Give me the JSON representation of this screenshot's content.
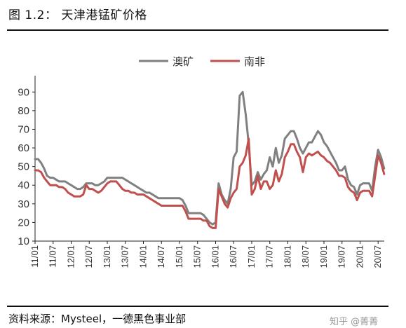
{
  "figure_title": "图 1.2：  天津港锰矿价格",
  "source": "资料来源：Mysteel，一德黑色事业部",
  "watermark": "知乎 @菁菁",
  "chart_data": {
    "type": "line",
    "title": "",
    "xlabel": "",
    "ylabel": "",
    "ylim": [
      10,
      95
    ],
    "yticks": [
      10,
      20,
      30,
      40,
      50,
      60,
      70,
      80,
      90
    ],
    "xlim": [
      2011.0,
      2020.67
    ],
    "xticks": [
      "11/01",
      "11/07",
      "12/01",
      "12/07",
      "13/01",
      "13/07",
      "14/01",
      "14/07",
      "15/01",
      "15/07",
      "16/01",
      "16/07",
      "17/01",
      "17/07",
      "18/01",
      "18/07",
      "19/01",
      "19/07",
      "20/01",
      "20/07"
    ],
    "legend_position": "top",
    "grid": false,
    "series": [
      {
        "name": "澳矿",
        "color": "#808080",
        "points": [
          [
            "2011-01",
            54
          ],
          [
            "2011-02",
            54
          ],
          [
            "2011-03",
            52
          ],
          [
            "2011-04",
            49
          ],
          [
            "2011-05",
            45
          ],
          [
            "2011-06",
            44
          ],
          [
            "2011-07",
            44
          ],
          [
            "2011-08",
            43
          ],
          [
            "2011-09",
            42
          ],
          [
            "2011-10",
            42
          ],
          [
            "2011-11",
            42
          ],
          [
            "2011-12",
            41
          ],
          [
            "2012-01",
            40
          ],
          [
            "2012-02",
            39
          ],
          [
            "2012-03",
            38
          ],
          [
            "2012-04",
            38
          ],
          [
            "2012-05",
            39
          ],
          [
            "2012-06",
            41
          ],
          [
            "2012-07",
            41
          ],
          [
            "2012-08",
            41
          ],
          [
            "2012-09",
            40
          ],
          [
            "2012-10",
            40
          ],
          [
            "2012-11",
            41
          ],
          [
            "2012-12",
            42
          ],
          [
            "2013-01",
            44
          ],
          [
            "2013-02",
            44
          ],
          [
            "2013-03",
            44
          ],
          [
            "2013-04",
            44
          ],
          [
            "2013-05",
            44
          ],
          [
            "2013-06",
            44
          ],
          [
            "2013-07",
            43
          ],
          [
            "2013-08",
            42
          ],
          [
            "2013-09",
            41
          ],
          [
            "2013-10",
            40
          ],
          [
            "2013-11",
            39
          ],
          [
            "2013-12",
            38
          ],
          [
            "2014-01",
            37
          ],
          [
            "2014-02",
            36
          ],
          [
            "2014-03",
            36
          ],
          [
            "2014-04",
            35
          ],
          [
            "2014-05",
            34
          ],
          [
            "2014-06",
            33
          ],
          [
            "2014-07",
            33
          ],
          [
            "2014-08",
            33
          ],
          [
            "2014-09",
            33
          ],
          [
            "2014-10",
            33
          ],
          [
            "2014-11",
            33
          ],
          [
            "2014-12",
            33
          ],
          [
            "2015-01",
            33
          ],
          [
            "2015-02",
            32
          ],
          [
            "2015-03",
            29
          ],
          [
            "2015-04",
            25
          ],
          [
            "2015-05",
            25
          ],
          [
            "2015-06",
            25
          ],
          [
            "2015-07",
            25
          ],
          [
            "2015-08",
            25
          ],
          [
            "2015-09",
            24
          ],
          [
            "2015-10",
            22
          ],
          [
            "2015-11",
            20
          ],
          [
            "2015-12",
            19
          ],
          [
            "2016-01",
            20
          ],
          [
            "2016-02",
            41
          ],
          [
            "2016-03",
            35
          ],
          [
            "2016-04",
            32
          ],
          [
            "2016-05",
            30
          ],
          [
            "2016-06",
            38
          ],
          [
            "2016-07",
            55
          ],
          [
            "2016-08",
            58
          ],
          [
            "2016-09",
            88
          ],
          [
            "2016-10",
            90
          ],
          [
            "2016-11",
            78
          ],
          [
            "2016-12",
            62
          ],
          [
            "2017-01",
            40
          ],
          [
            "2017-02",
            42
          ],
          [
            "2017-03",
            47
          ],
          [
            "2017-04",
            43
          ],
          [
            "2017-05",
            46
          ],
          [
            "2017-06",
            48
          ],
          [
            "2017-07",
            55
          ],
          [
            "2017-08",
            50
          ],
          [
            "2017-09",
            60
          ],
          [
            "2017-10",
            52
          ],
          [
            "2017-11",
            56
          ],
          [
            "2017-12",
            65
          ],
          [
            "2018-01",
            67
          ],
          [
            "2018-02",
            69
          ],
          [
            "2018-03",
            69
          ],
          [
            "2018-04",
            65
          ],
          [
            "2018-05",
            60
          ],
          [
            "2018-06",
            57
          ],
          [
            "2018-07",
            60
          ],
          [
            "2018-08",
            63
          ],
          [
            "2018-09",
            63
          ],
          [
            "2018-10",
            66
          ],
          [
            "2018-11",
            69
          ],
          [
            "2018-12",
            67
          ],
          [
            "2019-01",
            63
          ],
          [
            "2019-02",
            61
          ],
          [
            "2019-03",
            58
          ],
          [
            "2019-04",
            55
          ],
          [
            "2019-05",
            52
          ],
          [
            "2019-06",
            48
          ],
          [
            "2019-07",
            48
          ],
          [
            "2019-08",
            50
          ],
          [
            "2019-09",
            43
          ],
          [
            "2019-10",
            40
          ],
          [
            "2019-11",
            39
          ],
          [
            "2019-12",
            35
          ],
          [
            "2020-01",
            40
          ],
          [
            "2020-02",
            41
          ],
          [
            "2020-03",
            41
          ],
          [
            "2020-04",
            41
          ],
          [
            "2020-05",
            37
          ],
          [
            "2020-06",
            50
          ],
          [
            "2020-07",
            59
          ],
          [
            "2020-08",
            55
          ],
          [
            "2020-09",
            49
          ]
        ]
      },
      {
        "name": "南非",
        "color": "#c0504d",
        "points": [
          [
            "2011-01",
            48
          ],
          [
            "2011-02",
            48
          ],
          [
            "2011-03",
            47
          ],
          [
            "2011-04",
            44
          ],
          [
            "2011-05",
            42
          ],
          [
            "2011-06",
            40
          ],
          [
            "2011-07",
            40
          ],
          [
            "2011-08",
            40
          ],
          [
            "2011-09",
            39
          ],
          [
            "2011-10",
            39
          ],
          [
            "2011-11",
            38
          ],
          [
            "2011-12",
            36
          ],
          [
            "2012-01",
            35
          ],
          [
            "2012-02",
            34
          ],
          [
            "2012-03",
            34
          ],
          [
            "2012-04",
            34
          ],
          [
            "2012-05",
            35
          ],
          [
            "2012-06",
            40
          ],
          [
            "2012-07",
            38
          ],
          [
            "2012-08",
            38
          ],
          [
            "2012-09",
            37
          ],
          [
            "2012-10",
            36
          ],
          [
            "2012-11",
            37
          ],
          [
            "2012-12",
            39
          ],
          [
            "2013-01",
            41
          ],
          [
            "2013-02",
            42
          ],
          [
            "2013-03",
            42
          ],
          [
            "2013-04",
            42
          ],
          [
            "2013-05",
            40
          ],
          [
            "2013-06",
            38
          ],
          [
            "2013-07",
            37
          ],
          [
            "2013-08",
            37
          ],
          [
            "2013-09",
            36
          ],
          [
            "2013-10",
            36
          ],
          [
            "2013-11",
            35
          ],
          [
            "2013-12",
            35
          ],
          [
            "2014-01",
            35
          ],
          [
            "2014-02",
            34
          ],
          [
            "2014-03",
            33
          ],
          [
            "2014-04",
            32
          ],
          [
            "2014-05",
            31
          ],
          [
            "2014-06",
            30
          ],
          [
            "2014-07",
            29
          ],
          [
            "2014-08",
            29
          ],
          [
            "2014-09",
            29
          ],
          [
            "2014-10",
            29
          ],
          [
            "2014-11",
            29
          ],
          [
            "2014-12",
            29
          ],
          [
            "2015-01",
            29
          ],
          [
            "2015-02",
            29
          ],
          [
            "2015-03",
            26
          ],
          [
            "2015-04",
            22
          ],
          [
            "2015-05",
            22
          ],
          [
            "2015-06",
            22
          ],
          [
            "2015-07",
            22
          ],
          [
            "2015-08",
            22
          ],
          [
            "2015-09",
            21
          ],
          [
            "2015-10",
            21
          ],
          [
            "2015-11",
            18
          ],
          [
            "2015-12",
            17
          ],
          [
            "2016-01",
            17
          ],
          [
            "2016-02",
            38
          ],
          [
            "2016-03",
            34
          ],
          [
            "2016-04",
            30
          ],
          [
            "2016-05",
            28
          ],
          [
            "2016-06",
            33
          ],
          [
            "2016-07",
            36
          ],
          [
            "2016-08",
            38
          ],
          [
            "2016-09",
            50
          ],
          [
            "2016-10",
            52
          ],
          [
            "2016-11",
            56
          ],
          [
            "2016-12",
            65
          ],
          [
            "2017-01",
            35
          ],
          [
            "2017-02",
            38
          ],
          [
            "2017-03",
            45
          ],
          [
            "2017-04",
            38
          ],
          [
            "2017-05",
            42
          ],
          [
            "2017-06",
            42
          ],
          [
            "2017-07",
            38
          ],
          [
            "2017-08",
            40
          ],
          [
            "2017-09",
            48
          ],
          [
            "2017-10",
            42
          ],
          [
            "2017-11",
            46
          ],
          [
            "2017-12",
            55
          ],
          [
            "2018-01",
            58
          ],
          [
            "2018-02",
            62
          ],
          [
            "2018-03",
            62
          ],
          [
            "2018-04",
            58
          ],
          [
            "2018-05",
            55
          ],
          [
            "2018-06",
            47
          ],
          [
            "2018-07",
            55
          ],
          [
            "2018-08",
            57
          ],
          [
            "2018-09",
            56
          ],
          [
            "2018-10",
            57
          ],
          [
            "2018-11",
            58
          ],
          [
            "2018-12",
            56
          ],
          [
            "2019-01",
            55
          ],
          [
            "2019-02",
            53
          ],
          [
            "2019-03",
            52
          ],
          [
            "2019-04",
            50
          ],
          [
            "2019-05",
            48
          ],
          [
            "2019-06",
            45
          ],
          [
            "2019-07",
            45
          ],
          [
            "2019-08",
            44
          ],
          [
            "2019-09",
            39
          ],
          [
            "2019-10",
            37
          ],
          [
            "2019-11",
            36
          ],
          [
            "2019-12",
            32
          ],
          [
            "2020-01",
            36
          ],
          [
            "2020-02",
            37
          ],
          [
            "2020-03",
            37
          ],
          [
            "2020-04",
            37
          ],
          [
            "2020-05",
            34
          ],
          [
            "2020-06",
            45
          ],
          [
            "2020-07",
            56
          ],
          [
            "2020-08",
            52
          ],
          [
            "2020-09",
            46
          ]
        ]
      }
    ]
  }
}
